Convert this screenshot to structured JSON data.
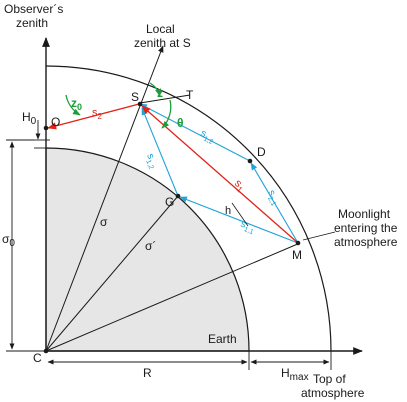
{
  "labels": {
    "observer_zenith_line1": "Observer´s",
    "observer_zenith_line2": "zenith",
    "local_zenith_line1": "Local",
    "local_zenith_line2": "zenith at S",
    "moonlight_line1": "Moonlight",
    "moonlight_line2": "entering the",
    "moonlight_line3": "atmosphere",
    "top_atm_line1": "Top of",
    "top_atm_line2": "atmosphere",
    "earth": "Earth",
    "R": "R",
    "H_max_main": "H",
    "H_max_sub": "max",
    "H0_main": "H",
    "H0_sub": "0",
    "sigma0_main": "σ",
    "sigma0_sub": "0",
    "sigma": "σ",
    "sigma_prime": "σ´",
    "h": "h",
    "z0_main": "z",
    "z0_sub": "0",
    "z": "z",
    "theta": "θ",
    "s2_main": "s",
    "s2_sub": "2",
    "s1_main": "s",
    "s1_sub": "1",
    "s12_main": "s",
    "s12_sub": "1,2",
    "s11_main": "s",
    "s11_sub": "1,1",
    "s1prime_main": "s",
    "s1prime_sub": "1,2",
    "s1prime2_main": "s",
    "s1prime2_sub": "2,1"
  },
  "points": {
    "C": "C",
    "O": "O",
    "S": "S",
    "T": "T",
    "D": "D",
    "G": "G",
    "M": "M"
  },
  "colors": {
    "red_ray": "#e2231a",
    "cyan_ray": "#1fa3d9",
    "green_angle": "#1b9e3a",
    "earth_fill": "#e6e6e6",
    "line": "#1a1a1a"
  }
}
